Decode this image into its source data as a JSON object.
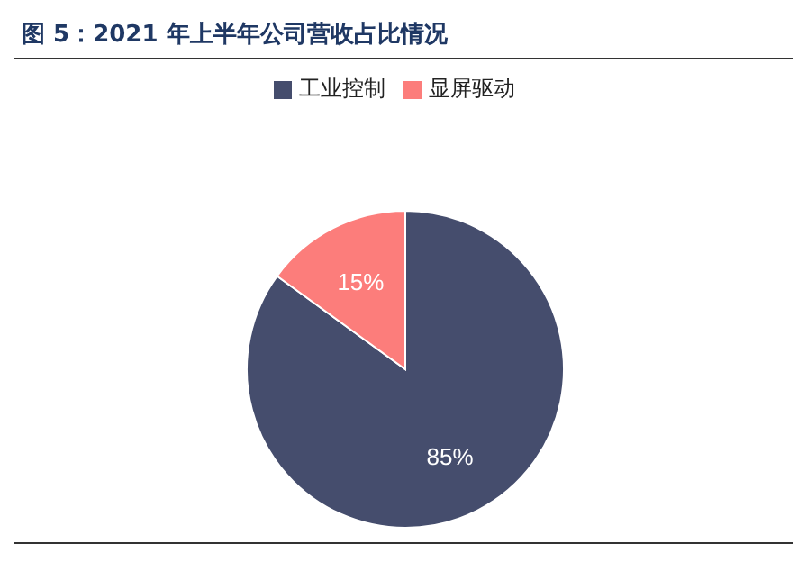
{
  "chart_data": {
    "type": "pie",
    "title": "图 5：2021 年上半年公司营收占比情况",
    "categories": [
      "工业控制",
      "显屏驱动"
    ],
    "values": [
      85,
      15
    ],
    "colors": [
      "#454d6d",
      "#fc7d7b"
    ],
    "value_labels": [
      "85%",
      "15%"
    ],
    "legend": "top"
  }
}
